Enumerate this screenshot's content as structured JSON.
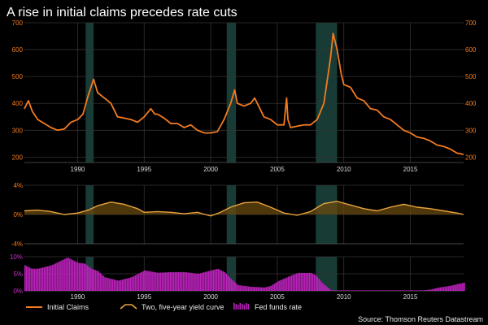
{
  "chart_data": {
    "title": "A rise in initial claims precedes rate cuts",
    "source": "Source: Thomson Reuters Datastream",
    "x_range": [
      1986,
      2019
    ],
    "x_ticks": [
      1990,
      1995,
      2000,
      2005,
      2010,
      2015
    ],
    "x_tick_labels": [
      "1990",
      "1995",
      "2000",
      "2005",
      "2010",
      "2015"
    ],
    "recessions": [
      [
        1990.6,
        1991.2
      ],
      [
        2001.2,
        2001.9
      ],
      [
        2007.9,
        2009.5
      ]
    ],
    "panels": [
      {
        "name": "initial-claims",
        "type": "line",
        "color": "#f47b20",
        "ylim": [
          180,
          700
        ],
        "y_ticks": [
          200,
          300,
          400,
          500,
          600,
          700
        ],
        "y_tick_labels": [
          "200",
          "300",
          "400",
          "500",
          "600",
          "700"
        ],
        "series_name": "Initial Claims",
        "points": [
          [
            1986.0,
            380
          ],
          [
            1986.3,
            410
          ],
          [
            1986.6,
            370
          ],
          [
            1987.0,
            340
          ],
          [
            1987.5,
            325
          ],
          [
            1988.0,
            310
          ],
          [
            1988.5,
            300
          ],
          [
            1989.0,
            305
          ],
          [
            1989.5,
            330
          ],
          [
            1990.0,
            340
          ],
          [
            1990.4,
            360
          ],
          [
            1990.8,
            430
          ],
          [
            1991.2,
            490
          ],
          [
            1991.5,
            440
          ],
          [
            1992.0,
            420
          ],
          [
            1992.5,
            400
          ],
          [
            1993.0,
            350
          ],
          [
            1993.5,
            345
          ],
          [
            1994.0,
            340
          ],
          [
            1994.5,
            330
          ],
          [
            1995.0,
            350
          ],
          [
            1995.5,
            380
          ],
          [
            1995.8,
            360
          ],
          [
            1996.0,
            360
          ],
          [
            1996.5,
            345
          ],
          [
            1997.0,
            325
          ],
          [
            1997.5,
            325
          ],
          [
            1998.0,
            310
          ],
          [
            1998.5,
            320
          ],
          [
            1999.0,
            300
          ],
          [
            1999.5,
            290
          ],
          [
            2000.0,
            290
          ],
          [
            2000.5,
            295
          ],
          [
            2001.0,
            340
          ],
          [
            2001.5,
            400
          ],
          [
            2001.8,
            450
          ],
          [
            2002.0,
            400
          ],
          [
            2002.5,
            390
          ],
          [
            2003.0,
            400
          ],
          [
            2003.3,
            420
          ],
          [
            2003.7,
            380
          ],
          [
            2004.0,
            350
          ],
          [
            2004.5,
            340
          ],
          [
            2005.0,
            320
          ],
          [
            2005.5,
            320
          ],
          [
            2005.7,
            420
          ],
          [
            2005.8,
            340
          ],
          [
            2006.0,
            310
          ],
          [
            2006.5,
            315
          ],
          [
            2007.0,
            320
          ],
          [
            2007.5,
            320
          ],
          [
            2008.0,
            340
          ],
          [
            2008.5,
            400
          ],
          [
            2009.0,
            570
          ],
          [
            2009.2,
            660
          ],
          [
            2009.5,
            600
          ],
          [
            2009.8,
            510
          ],
          [
            2010.0,
            470
          ],
          [
            2010.5,
            460
          ],
          [
            2011.0,
            420
          ],
          [
            2011.5,
            410
          ],
          [
            2012.0,
            380
          ],
          [
            2012.5,
            375
          ],
          [
            2013.0,
            350
          ],
          [
            2013.5,
            340
          ],
          [
            2014.0,
            320
          ],
          [
            2014.5,
            300
          ],
          [
            2015.0,
            290
          ],
          [
            2015.5,
            275
          ],
          [
            2016.0,
            270
          ],
          [
            2016.5,
            260
          ],
          [
            2017.0,
            245
          ],
          [
            2017.5,
            240
          ],
          [
            2018.0,
            230
          ],
          [
            2018.5,
            215
          ],
          [
            2019.0,
            210
          ]
        ]
      },
      {
        "name": "yield-curve",
        "type": "area",
        "color": "#e8a33d",
        "ylim": [
          -4,
          4
        ],
        "y_ticks": [
          4,
          0,
          -4
        ],
        "y_tick_labels": [
          "4%",
          "0%",
          "-4%"
        ],
        "series_name": "Two, five-year yield curve",
        "points": [
          [
            1986.0,
            0.5
          ],
          [
            1987.0,
            0.6
          ],
          [
            1988.0,
            0.4
          ],
          [
            1989.0,
            0.0
          ],
          [
            1990.0,
            0.2
          ],
          [
            1990.8,
            0.6
          ],
          [
            1991.5,
            1.2
          ],
          [
            1992.5,
            1.7
          ],
          [
            1993.5,
            1.4
          ],
          [
            1994.5,
            0.8
          ],
          [
            1995.0,
            0.3
          ],
          [
            1996.0,
            0.4
          ],
          [
            1997.0,
            0.3
          ],
          [
            1998.0,
            0.1
          ],
          [
            1999.0,
            0.3
          ],
          [
            2000.0,
            -0.2
          ],
          [
            2000.6,
            0.2
          ],
          [
            2001.5,
            1.0
          ],
          [
            2002.5,
            1.6
          ],
          [
            2003.5,
            1.7
          ],
          [
            2004.5,
            1.0
          ],
          [
            2005.5,
            0.2
          ],
          [
            2006.5,
            -0.1
          ],
          [
            2007.5,
            0.4
          ],
          [
            2008.5,
            1.5
          ],
          [
            2009.5,
            1.8
          ],
          [
            2010.5,
            1.3
          ],
          [
            2011.5,
            0.8
          ],
          [
            2012.5,
            0.5
          ],
          [
            2013.5,
            1.0
          ],
          [
            2014.5,
            1.4
          ],
          [
            2015.5,
            1.0
          ],
          [
            2016.5,
            0.8
          ],
          [
            2017.5,
            0.5
          ],
          [
            2018.5,
            0.2
          ],
          [
            2019.0,
            0.0
          ]
        ]
      },
      {
        "name": "fed-funds",
        "type": "bar",
        "color": "#bb22bb",
        "ylim": [
          0,
          10
        ],
        "y_ticks": [
          10,
          5,
          0
        ],
        "y_tick_labels": [
          "10%",
          "5%",
          "0%"
        ],
        "series_name": "Fed funds rate",
        "points": [
          [
            1986.0,
            7.5
          ],
          [
            1986.5,
            6.5
          ],
          [
            1987.0,
            6.5
          ],
          [
            1988.0,
            7.5
          ],
          [
            1988.8,
            9.0
          ],
          [
            1989.2,
            9.8
          ],
          [
            1990.0,
            8.2
          ],
          [
            1990.5,
            8.0
          ],
          [
            1991.0,
            6.5
          ],
          [
            1991.5,
            5.8
          ],
          [
            1992.0,
            4.0
          ],
          [
            1993.0,
            3.0
          ],
          [
            1994.0,
            4.0
          ],
          [
            1995.0,
            6.0
          ],
          [
            1996.0,
            5.3
          ],
          [
            1997.0,
            5.5
          ],
          [
            1998.0,
            5.5
          ],
          [
            1999.0,
            5.0
          ],
          [
            2000.0,
            6.0
          ],
          [
            2000.5,
            6.5
          ],
          [
            2001.0,
            5.5
          ],
          [
            2001.5,
            3.5
          ],
          [
            2002.0,
            1.7
          ],
          [
            2003.0,
            1.2
          ],
          [
            2004.0,
            1.0
          ],
          [
            2004.5,
            1.5
          ],
          [
            2005.0,
            2.8
          ],
          [
            2006.0,
            4.5
          ],
          [
            2006.5,
            5.25
          ],
          [
            2007.5,
            5.25
          ],
          [
            2007.9,
            4.5
          ],
          [
            2008.3,
            2.5
          ],
          [
            2008.9,
            0.5
          ],
          [
            2009.0,
            0.15
          ],
          [
            2015.9,
            0.15
          ],
          [
            2016.5,
            0.4
          ],
          [
            2017.0,
            0.9
          ],
          [
            2017.5,
            1.2
          ],
          [
            2018.0,
            1.5
          ],
          [
            2018.5,
            2.0
          ],
          [
            2019.0,
            2.4
          ]
        ]
      }
    ],
    "legend": [
      {
        "label": "Initial Claims",
        "style": "line",
        "color": "#f47b20"
      },
      {
        "label": "Two, five-year yield curve",
        "style": "area",
        "color": "#e8a33d"
      },
      {
        "label": "Fed funds rate",
        "style": "bar",
        "color": "#bb22bb"
      }
    ]
  }
}
